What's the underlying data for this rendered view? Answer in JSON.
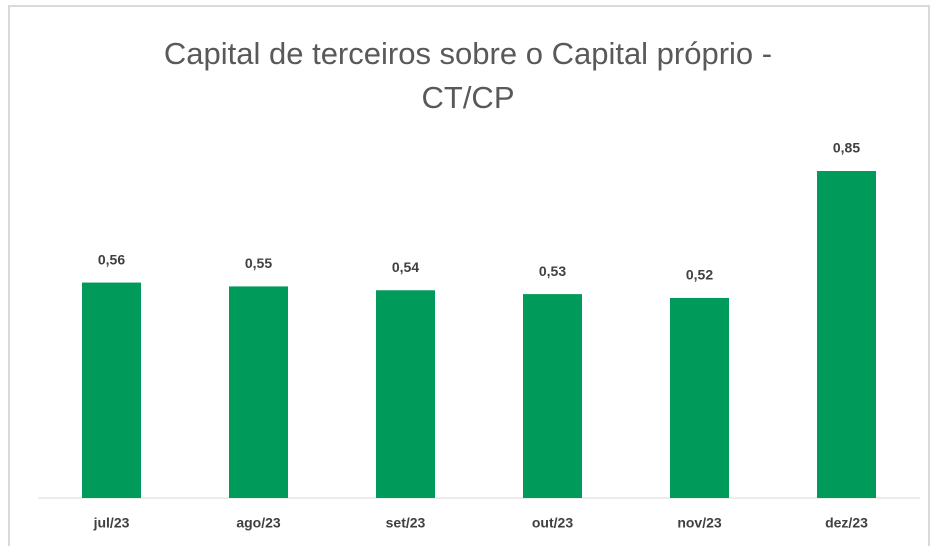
{
  "chart_data": {
    "type": "bar",
    "title": "Capital de terceiros sobre o Capital próprio - CT/CP",
    "categories": [
      "jul/23",
      "ago/23",
      "set/23",
      "out/23",
      "nov/23",
      "dez/23"
    ],
    "values": [
      0.56,
      0.55,
      0.54,
      0.53,
      0.52,
      0.85
    ],
    "value_labels": [
      "0,56",
      "0,55",
      "0,54",
      "0,53",
      "0,52",
      "0,85"
    ],
    "color": "#009a5b"
  }
}
